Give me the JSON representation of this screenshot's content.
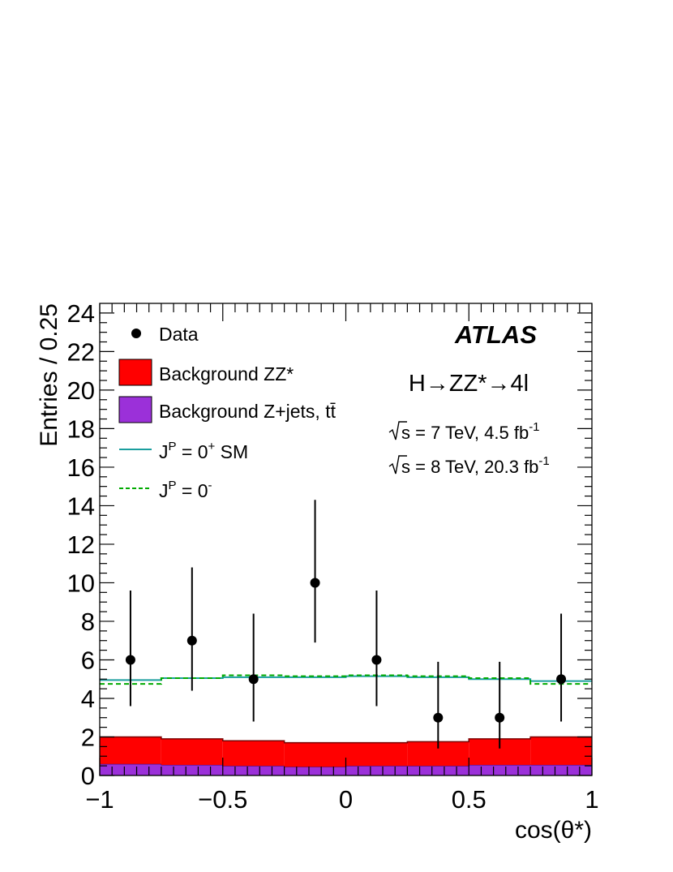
{
  "chart_data": {
    "type": "histogram",
    "title": "",
    "xlabel": "cos(θ*)",
    "ylabel": "Entries / 0.25",
    "xlim": [
      -1,
      1
    ],
    "ylim": [
      0,
      24.5
    ],
    "x_ticks": [
      -1,
      -0.5,
      0,
      0.5,
      1
    ],
    "x_tick_labels": [
      "−1",
      "−0.5",
      "0",
      "0.5",
      "1"
    ],
    "y_ticks": [
      0,
      2,
      4,
      6,
      8,
      10,
      12,
      14,
      16,
      18,
      20,
      22,
      24
    ],
    "y_tick_labels": [
      "0",
      "2",
      "4",
      "6",
      "8",
      "10",
      "12",
      "14",
      "16",
      "18",
      "20",
      "22",
      "24"
    ],
    "bin_edges": [
      -1,
      -0.75,
      -0.5,
      -0.25,
      0,
      0.25,
      0.5,
      0.75,
      1
    ],
    "series": [
      {
        "name": "Background Z+jets, tt̄",
        "kind": "stacked-fill",
        "color": "#9b30d9",
        "values": [
          0.6,
          0.55,
          0.5,
          0.45,
          0.5,
          0.5,
          0.55,
          0.55
        ]
      },
      {
        "name": "Background ZZ*",
        "kind": "stacked-fill",
        "color": "#ff0000",
        "values": [
          1.4,
          1.35,
          1.3,
          1.25,
          1.2,
          1.25,
          1.35,
          1.45
        ]
      },
      {
        "name": "JP = 0+ SM",
        "kind": "step-line",
        "color": "#1a9e9e",
        "values": [
          4.95,
          5.05,
          5.1,
          5.1,
          5.15,
          5.1,
          5.0,
          4.9
        ]
      },
      {
        "name": "JP = 0-",
        "kind": "dashed-step-line",
        "color": "#00aa00",
        "values": [
          4.75,
          5.05,
          5.2,
          5.15,
          5.2,
          5.15,
          5.05,
          4.75
        ]
      }
    ],
    "data_points": {
      "name": "Data",
      "x": [
        -0.875,
        -0.625,
        -0.375,
        -0.125,
        0.125,
        0.375,
        0.625,
        0.875
      ],
      "y": [
        6,
        7,
        5,
        10,
        6,
        3,
        3,
        5
      ],
      "err_low": [
        2.4,
        2.6,
        2.2,
        3.1,
        2.4,
        1.6,
        1.6,
        2.2
      ],
      "err_high": [
        3.6,
        3.8,
        3.4,
        4.3,
        3.6,
        2.9,
        2.9,
        3.4
      ]
    },
    "legend": {
      "position": "top-left",
      "entries": [
        {
          "label": "Data",
          "symbol": "marker"
        },
        {
          "label": "Background ZZ*",
          "symbol": "fill",
          "color": "#ff0000"
        },
        {
          "label": "Background Z+jets, tt̄",
          "symbol": "fill",
          "color": "#9b30d9"
        },
        {
          "label_main": "J",
          "label_sup": "P",
          "label_rest": " = 0",
          "label_sup2": "+",
          "label_tail": " SM",
          "symbol": "line",
          "color": "#1a9e9e"
        },
        {
          "label_main": "J",
          "label_sup": "P",
          "label_rest": " = 0",
          "label_sup2": "-",
          "label_tail": "",
          "symbol": "dashed",
          "color": "#00aa00"
        }
      ]
    },
    "annotations": {
      "experiment": "ATLAS",
      "process": "H→ZZ*→4l",
      "lumi_7": {
        "energy": "s = 7 TeV, 4.5 fb",
        "exp": "-1"
      },
      "lumi_8": {
        "energy": "s = 8 TeV, 20.3 fb",
        "exp": "-1"
      }
    },
    "grid": false
  }
}
